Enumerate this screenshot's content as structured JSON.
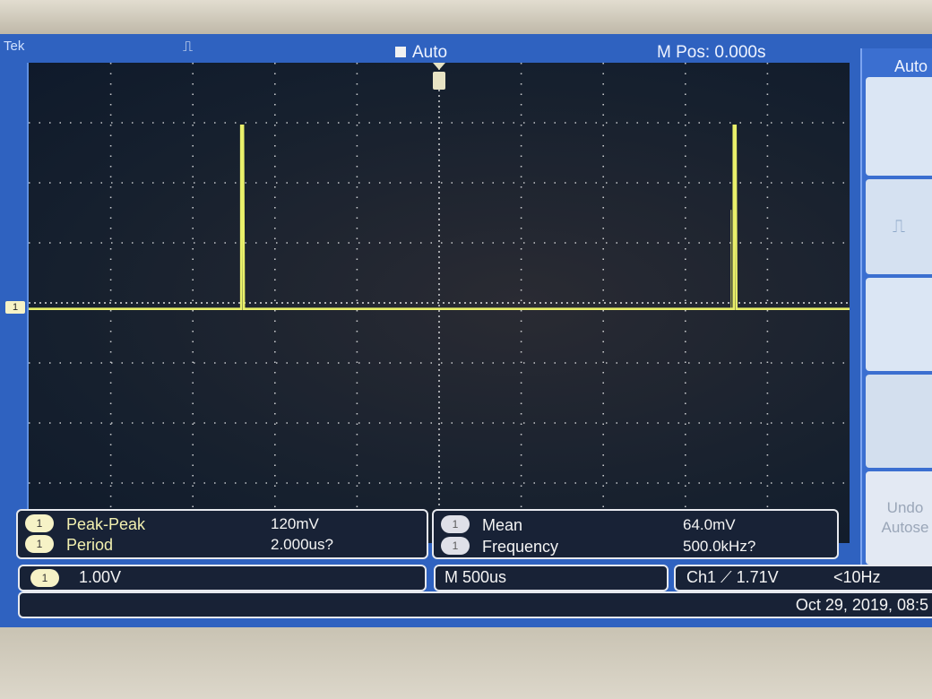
{
  "header": {
    "brand": "Tek",
    "trigger_icon": "pulse-edge-icon",
    "acq_state": "Auto",
    "horizontal_position": "M Pos: 0.000s"
  },
  "side_menu": {
    "title": "Auto",
    "undo_line1": "Undo",
    "undo_line2": "Autose"
  },
  "ground_marker": "1",
  "waveform": {
    "channel": "Ch1",
    "color": "#e9f06a",
    "divisions": {
      "x": 10,
      "y": 8
    },
    "baseline_div": 4.1,
    "pulse_peak_div": 1.05,
    "pulse_positions_div": [
      2.6,
      8.6
    ]
  },
  "measurements": {
    "left": [
      {
        "channel": "1",
        "name": "Peak-Peak",
        "value": "120mV"
      },
      {
        "channel": "1",
        "name": "Period",
        "value": "2.000us?"
      }
    ],
    "right": [
      {
        "channel": "1",
        "name": "Mean",
        "value": "64.0mV"
      },
      {
        "channel": "1",
        "name": "Frequency",
        "value": "500.0kHz?"
      }
    ]
  },
  "status": {
    "ch1_scale_badge": "1",
    "ch1_scale": "1.00V",
    "timebase": "M 500us",
    "trigger": "Ch1 ⟋ 1.71V",
    "trigger_freq": "<10Hz",
    "datetime": "Oct 29, 2019, 08:5"
  },
  "colors": {
    "screen_blue": "#2f62c0",
    "label_yellow": "#f2f0b0",
    "trace_yellow": "#e9f06a"
  }
}
